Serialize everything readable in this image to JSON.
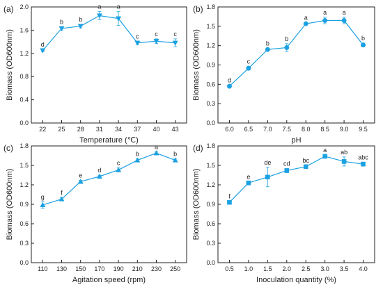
{
  "style": {
    "series_color": "#1ba1e2",
    "axis_color": "#222222",
    "marker_shapes": [
      "triangle-down",
      "circle",
      "triangle-up",
      "square"
    ]
  },
  "chart_data": [
    {
      "type": "line",
      "panel_label": "(a)",
      "xlabel": "Temperature (℃)",
      "ylabel": "Biomass (OD600nm)",
      "marker": "triangle-down",
      "x": [
        "22",
        "25",
        "28",
        "31",
        "34",
        "37",
        "40",
        "43"
      ],
      "y": [
        1.25,
        1.63,
        1.67,
        1.85,
        1.8,
        1.38,
        1.41,
        1.38
      ],
      "err": [
        0.02,
        0.03,
        0.03,
        0.07,
        0.12,
        0.03,
        0.04,
        0.07
      ],
      "letters": [
        "d",
        "b",
        "b",
        "a",
        "a",
        "c",
        "c",
        "c"
      ],
      "ylim": [
        0.0,
        2.0
      ],
      "yticks": [
        "0.0",
        "0.4",
        "0.8",
        "1.2",
        "1.6",
        "2.0"
      ]
    },
    {
      "type": "line",
      "panel_label": "(b)",
      "xlabel": "pH",
      "ylabel": "Biomass (OD600nm)",
      "marker": "circle",
      "x": [
        "6.0",
        "6.5",
        "7.0",
        "7.5",
        "8.0",
        "8.5",
        "9.0",
        "9.5"
      ],
      "y": [
        0.57,
        0.85,
        1.14,
        1.17,
        1.54,
        1.59,
        1.59,
        1.21
      ],
      "err": [
        0.02,
        0.03,
        0.02,
        0.06,
        0.02,
        0.05,
        0.05,
        0.03
      ],
      "letters": [
        "d",
        "c",
        "b",
        "b",
        "a",
        "a",
        "a",
        "b"
      ],
      "ylim": [
        0.0,
        1.8
      ],
      "yticks": [
        "0.0",
        "0.3",
        "0.6",
        "0.9",
        "1.2",
        "1.5",
        "1.8"
      ]
    },
    {
      "type": "line",
      "panel_label": "(c)",
      "xlabel": "Agitation speed (rpm)",
      "ylabel": "Biomass (OD600nm)",
      "marker": "triangle-up",
      "x": [
        "110",
        "130",
        "150",
        "170",
        "190",
        "210",
        "230",
        "250"
      ],
      "y": [
        0.89,
        0.98,
        1.25,
        1.33,
        1.43,
        1.58,
        1.69,
        1.58
      ],
      "err": [
        0.05,
        0.02,
        0.02,
        0.02,
        0.03,
        0.02,
        0.02,
        0.02
      ],
      "letters": [
        "g",
        "f",
        "e",
        "d",
        "c",
        "b",
        "a",
        "b"
      ],
      "ylim": [
        0.0,
        1.8
      ],
      "yticks": [
        "0.0",
        "0.3",
        "0.6",
        "0.9",
        "1.2",
        "1.5",
        "1.8"
      ]
    },
    {
      "type": "line",
      "panel_label": "(d)",
      "xlabel": "Inoculation quantity (%)",
      "ylabel": "Biomass (OD600nm)",
      "marker": "square",
      "x": [
        "0.5",
        "1.0",
        "1.5",
        "2.0",
        "2.5",
        "3.0",
        "3.5",
        "4.0"
      ],
      "y": [
        0.93,
        1.23,
        1.32,
        1.42,
        1.48,
        1.64,
        1.56,
        1.52
      ],
      "err": [
        0.02,
        0.02,
        0.15,
        0.03,
        0.02,
        0.02,
        0.07,
        0.03
      ],
      "letters": [
        "f",
        "e",
        "de",
        "cd",
        "bc",
        "a",
        "ab",
        "abc"
      ],
      "ylim": [
        0.0,
        1.8
      ],
      "yticks": [
        "0.0",
        "0.3",
        "0.6",
        "0.9",
        "1.2",
        "1.5",
        "1.8"
      ]
    }
  ]
}
